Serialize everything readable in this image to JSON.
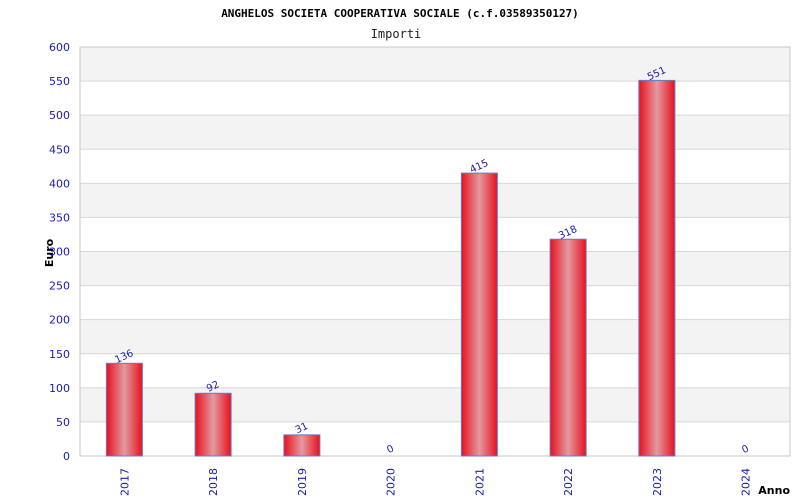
{
  "chart_data": {
    "type": "bar",
    "title": "ANGHELOS SOCIETA COOPERATIVA SOCIALE (c.f.03589350127)",
    "subtitle": "Importi",
    "xlabel": "Anno",
    "ylabel": "Euro",
    "categories": [
      "2017",
      "2018",
      "2019",
      "2020",
      "2021",
      "2022",
      "2023",
      "2024"
    ],
    "values": [
      136,
      92,
      31,
      0,
      415,
      318,
      551,
      0
    ],
    "data_labels": [
      "136",
      "92",
      "31",
      "0",
      "415",
      "318",
      "551",
      "0"
    ],
    "ylim": [
      0,
      600
    ],
    "yticks": [
      "0",
      "50",
      "100",
      "150",
      "200",
      "250",
      "300",
      "350",
      "400",
      "450",
      "500",
      "550",
      "600"
    ],
    "ytick_values": [
      0,
      50,
      100,
      150,
      200,
      250,
      300,
      350,
      400,
      450,
      500,
      550,
      600
    ],
    "grid": true,
    "colors": {
      "bar_edge": "#e8101e",
      "bar_center": "#e29aa0",
      "bar_outline": "#6a7ac0",
      "tick_label": "#1a1ab0",
      "title": "#000000",
      "band": "#f3f3f3",
      "grid": "#d8d8d8",
      "frame": "#c8c8c8"
    }
  }
}
